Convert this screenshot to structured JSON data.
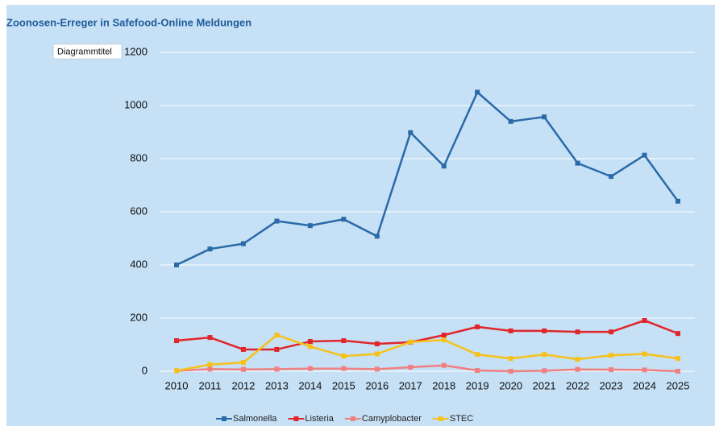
{
  "chart_data": {
    "type": "line",
    "title": "Zoonosen-Erreger in Safefood-Online Meldungen",
    "tooltip": "Diagrammtitel",
    "categories": [
      "2010",
      "2011",
      "2012",
      "2013",
      "2014",
      "2015",
      "2016",
      "2017",
      "2018",
      "2019",
      "2020",
      "2021",
      "2022",
      "2023",
      "2024",
      "2025"
    ],
    "series": [
      {
        "name": "Salmonella",
        "color": "#2a6aa8",
        "values": [
          400,
          460,
          480,
          565,
          548,
          572,
          508,
          898,
          772,
          1050,
          940,
          957,
          783,
          733,
          813,
          640
        ]
      },
      {
        "name": "Listeria",
        "color": "#e0262b",
        "values": [
          115,
          127,
          82,
          82,
          112,
          115,
          103,
          109,
          136,
          167,
          152,
          152,
          148,
          148,
          191,
          142
        ]
      },
      {
        "name": "Camyplobacter",
        "color": "#ef8080",
        "values": [
          2,
          8,
          7,
          8,
          10,
          10,
          8,
          15,
          22,
          3,
          0,
          2,
          7,
          6,
          5,
          0
        ]
      },
      {
        "name": "STEC",
        "color": "#f6c219",
        "values": [
          2,
          25,
          33,
          136,
          93,
          57,
          65,
          110,
          118,
          63,
          48,
          63,
          45,
          60,
          65,
          48
        ]
      }
    ],
    "ylim": [
      0,
      1200
    ],
    "yticks": [
      0,
      200,
      400,
      600,
      800,
      1000,
      1200
    ],
    "grid": true,
    "legend": "bottom"
  }
}
